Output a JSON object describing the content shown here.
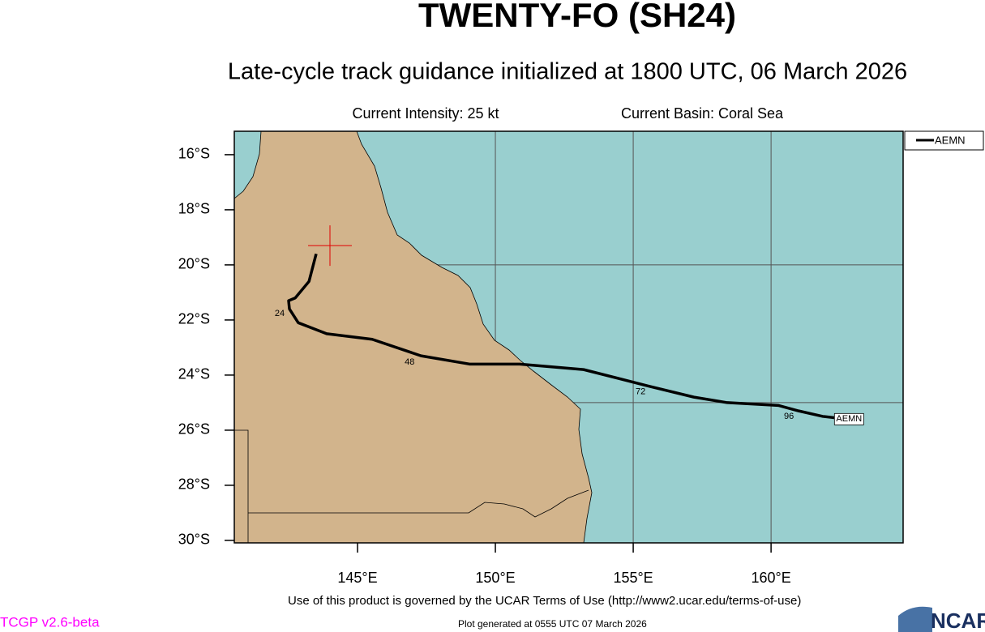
{
  "chart_data": {
    "type": "track-map",
    "title": "TWENTY-FO (SH24)",
    "subtitle": "Late-cycle track guidance initialized at 1800 UTC, 06 March 2026",
    "info_left": "Current Intensity: 25 kt",
    "info_right": "Current Basin: Coral Sea",
    "xlim": [
      140.53,
      164.79
    ],
    "ylim": [
      -30.09,
      -15.15
    ],
    "xticks": [
      {
        "value": 145,
        "label": "145°E"
      },
      {
        "value": 150,
        "label": "150°E"
      },
      {
        "value": 155,
        "label": "155°E"
      },
      {
        "value": 160,
        "label": "160°E"
      }
    ],
    "yticks": [
      {
        "value": -16,
        "label": "16°S"
      },
      {
        "value": -18,
        "label": "18°S"
      },
      {
        "value": -20,
        "label": "20°S"
      },
      {
        "value": -22,
        "label": "22°S"
      },
      {
        "value": -24,
        "label": "24°S"
      },
      {
        "value": -26,
        "label": "26°S"
      },
      {
        "value": -28,
        "label": "28°S"
      },
      {
        "value": -30,
        "label": "30°S"
      }
    ],
    "grid_x": [
      150,
      155,
      160
    ],
    "grid_y": [
      -20,
      -25
    ],
    "current_position": [
      144.0,
      -19.3
    ],
    "series": [
      {
        "name": "AEMN",
        "color": "#000000",
        "x": [
          143.5,
          143.24,
          142.74,
          142.5,
          142.53,
          142.85,
          143.88,
          145.53,
          147.3,
          149.06,
          150.88,
          153.2,
          155.56,
          157.2,
          158.41,
          160.26,
          161.0,
          161.88,
          162.77
        ],
        "values": [
          -19.6,
          -20.6,
          -21.2,
          -21.3,
          -21.6,
          -22.1,
          -22.5,
          -22.7,
          -23.3,
          -23.6,
          -23.6,
          -23.8,
          -24.4,
          -24.8,
          -25.0,
          -25.1,
          -25.3,
          -25.5,
          -25.6
        ]
      }
    ],
    "hour_labels": [
      "24",
      "48",
      "72",
      "96"
    ],
    "legend": "top-right",
    "terms": "Use of this product is governed by the UCAR Terms of Use (http://www2.ucar.edu/terms-of-use)",
    "version": "TCGP v2.6-beta",
    "generated": "Plot generated at 0555 UTC   07 March 2026",
    "logo": "NCAR"
  }
}
